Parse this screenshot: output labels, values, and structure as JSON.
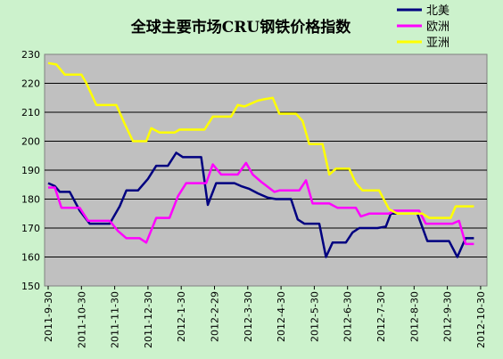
{
  "chart_data": {
    "type": "line",
    "title": "全球主要市场CRU钢铁价格指数",
    "ylim": [
      150,
      230
    ],
    "yticks": [
      150,
      160,
      170,
      180,
      190,
      200,
      210,
      220,
      230
    ],
    "grid": true,
    "legend_position": "top-right",
    "x_tick_labels": [
      "2011-9-30",
      "2011-10-30",
      "2011-11-30",
      "2011-12-30",
      "2012-1-30",
      "2012-2-29",
      "2012-3-30",
      "2012-4-30",
      "2012-5-30",
      "2012-6-30",
      "2012-7-30",
      "2012-8-30",
      "2012-9-30",
      "2012-10-30"
    ],
    "series": [
      {
        "name": "北美",
        "color": "#000080",
        "points": [
          [
            0,
            185.5
          ],
          [
            0.2,
            184.5
          ],
          [
            0.35,
            182.5
          ],
          [
            0.65,
            182.5
          ],
          [
            0.95,
            176
          ],
          [
            1.25,
            171.5
          ],
          [
            1.85,
            171.5
          ],
          [
            2.15,
            177.5
          ],
          [
            2.35,
            183
          ],
          [
            2.7,
            183
          ],
          [
            3,
            187
          ],
          [
            3.25,
            191.5
          ],
          [
            3.6,
            191.5
          ],
          [
            3.85,
            196
          ],
          [
            4.05,
            194.5
          ],
          [
            4.6,
            194.5
          ],
          [
            4.8,
            178
          ],
          [
            5.05,
            185.5
          ],
          [
            5.6,
            185.5
          ],
          [
            5.8,
            184.5
          ],
          [
            6.05,
            183.5
          ],
          [
            6.3,
            182
          ],
          [
            6.6,
            180.5
          ],
          [
            6.85,
            180
          ],
          [
            7.3,
            180
          ],
          [
            7.5,
            173
          ],
          [
            7.7,
            171.5
          ],
          [
            8.15,
            171.5
          ],
          [
            8.35,
            160
          ],
          [
            8.55,
            165
          ],
          [
            8.95,
            165
          ],
          [
            9.15,
            168.5
          ],
          [
            9.35,
            170
          ],
          [
            9.9,
            170
          ],
          [
            10.15,
            170.5
          ],
          [
            10.3,
            175
          ],
          [
            11.1,
            175
          ],
          [
            11.4,
            165.5
          ],
          [
            12.05,
            165.5
          ],
          [
            12.3,
            160
          ],
          [
            12.55,
            166.5
          ],
          [
            12.8,
            166.5
          ]
        ]
      },
      {
        "name": "欧洲",
        "color": "#ff00ff",
        "points": [
          [
            0,
            184
          ],
          [
            0.2,
            184
          ],
          [
            0.4,
            177
          ],
          [
            0.95,
            177
          ],
          [
            1.2,
            172.5
          ],
          [
            1.85,
            172.5
          ],
          [
            2.1,
            169
          ],
          [
            2.35,
            166.5
          ],
          [
            2.75,
            166.5
          ],
          [
            2.95,
            165
          ],
          [
            3.25,
            173.5
          ],
          [
            3.65,
            173.5
          ],
          [
            3.9,
            181
          ],
          [
            4.15,
            185.5
          ],
          [
            4.75,
            185.5
          ],
          [
            4.95,
            192
          ],
          [
            5.2,
            188.5
          ],
          [
            5.7,
            188.5
          ],
          [
            5.95,
            192.5
          ],
          [
            6.15,
            188.5
          ],
          [
            6.4,
            186
          ],
          [
            6.8,
            182.5
          ],
          [
            6.95,
            183
          ],
          [
            7.55,
            183
          ],
          [
            7.75,
            186.5
          ],
          [
            7.95,
            178.5
          ],
          [
            8.45,
            178.5
          ],
          [
            8.7,
            177
          ],
          [
            9.25,
            177
          ],
          [
            9.4,
            174
          ],
          [
            9.65,
            175
          ],
          [
            10.25,
            175
          ],
          [
            10.4,
            176
          ],
          [
            11.15,
            176
          ],
          [
            11.35,
            171.5
          ],
          [
            12.15,
            171.5
          ],
          [
            12.35,
            172.5
          ],
          [
            12.55,
            164.5
          ],
          [
            12.8,
            164.5
          ]
        ]
      },
      {
        "name": "亚洲",
        "color": "#ffff00",
        "points": [
          [
            0,
            227
          ],
          [
            0.25,
            226.5
          ],
          [
            0.5,
            223
          ],
          [
            1,
            223
          ],
          [
            1.15,
            220
          ],
          [
            1.45,
            212.5
          ],
          [
            2.05,
            212.5
          ],
          [
            2.3,
            206
          ],
          [
            2.55,
            200
          ],
          [
            2.95,
            200
          ],
          [
            3.1,
            204.5
          ],
          [
            3.35,
            203
          ],
          [
            3.8,
            203
          ],
          [
            3.95,
            204
          ],
          [
            4.7,
            204
          ],
          [
            4.95,
            208.5
          ],
          [
            5.5,
            208.5
          ],
          [
            5.7,
            212.5
          ],
          [
            5.9,
            212
          ],
          [
            6.1,
            213
          ],
          [
            6.3,
            214
          ],
          [
            6.5,
            214.5
          ],
          [
            6.75,
            215
          ],
          [
            6.95,
            209.5
          ],
          [
            7.45,
            209.5
          ],
          [
            7.65,
            207
          ],
          [
            7.85,
            199
          ],
          [
            8.25,
            199
          ],
          [
            8.45,
            188.5
          ],
          [
            8.65,
            190.5
          ],
          [
            9.05,
            190.5
          ],
          [
            9.25,
            185.5
          ],
          [
            9.45,
            183
          ],
          [
            9.95,
            183
          ],
          [
            10.25,
            176.5
          ],
          [
            10.5,
            175
          ],
          [
            11.25,
            175
          ],
          [
            11.45,
            173.5
          ],
          [
            12.1,
            173.5
          ],
          [
            12.25,
            177.5
          ],
          [
            12.8,
            177.5
          ]
        ]
      }
    ]
  }
}
